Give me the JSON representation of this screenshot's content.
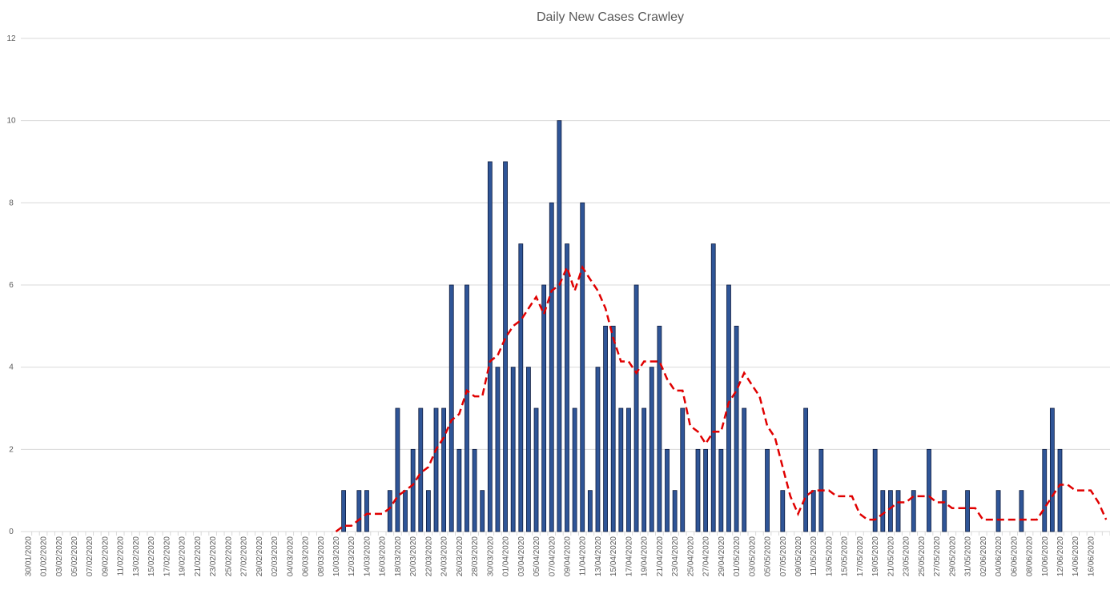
{
  "chart_data": {
    "type": "bar",
    "title": "Daily New Cases Crawley",
    "categories": [
      "30/01/2020",
      null,
      "01/02/2020",
      null,
      "03/02/2020",
      null,
      "05/02/2020",
      null,
      "07/02/2020",
      null,
      "09/02/2020",
      null,
      "11/02/2020",
      null,
      "13/02/2020",
      null,
      "15/02/2020",
      null,
      "17/02/2020",
      null,
      "19/02/2020",
      null,
      "21/02/2020",
      null,
      "23/02/2020",
      null,
      "25/02/2020",
      null,
      "27/02/2020",
      null,
      "29/02/2020",
      null,
      "02/03/2020",
      null,
      "04/03/2020",
      null,
      "06/03/2020",
      null,
      "08/03/2020",
      null,
      "10/03/2020",
      null,
      "12/03/2020",
      null,
      "14/03/2020",
      null,
      "16/03/2020",
      null,
      "18/03/2020",
      null,
      "20/03/2020",
      null,
      "22/03/2020",
      null,
      "24/03/2020",
      null,
      "26/03/2020",
      null,
      "28/03/2020",
      null,
      "30/03/2020",
      null,
      "01/04/2020",
      null,
      "03/04/2020",
      null,
      "05/04/2020",
      null,
      "07/04/2020",
      null,
      "09/04/2020",
      null,
      "11/04/2020",
      null,
      "13/04/2020",
      null,
      "15/04/2020",
      null,
      "17/04/2020",
      null,
      "19/04/2020",
      null,
      "21/04/2020",
      null,
      "23/04/2020",
      null,
      "25/04/2020",
      null,
      "27/04/2020",
      null,
      "29/04/2020",
      null,
      "01/05/2020",
      null,
      "03/05/2020",
      null,
      "05/05/2020",
      null,
      "07/05/2020",
      null,
      "09/05/2020",
      null,
      "11/05/2020",
      null,
      "13/05/2020",
      null,
      "15/05/2020",
      null,
      "17/05/2020",
      null,
      "19/05/2020",
      null,
      "21/05/2020",
      null,
      "23/05/2020",
      null,
      "25/05/2020",
      null,
      "27/05/2020",
      null,
      "29/05/2020",
      null,
      "31/05/2020",
      null,
      "02/06/2020",
      null,
      "04/06/2020",
      null,
      "06/06/2020",
      null,
      "08/06/2020",
      null,
      "10/06/2020",
      null,
      "12/06/2020",
      null,
      "14/06/2020",
      null,
      "16/06/2020",
      null,
      null
    ],
    "series": [
      {
        "type": "bar",
        "color": "#2f5597",
        "values": [
          0,
          0,
          0,
          0,
          0,
          0,
          0,
          0,
          0,
          0,
          0,
          0,
          0,
          0,
          0,
          0,
          0,
          0,
          0,
          0,
          0,
          0,
          0,
          0,
          0,
          0,
          0,
          0,
          0,
          0,
          0,
          0,
          0,
          0,
          0,
          0,
          0,
          0,
          0,
          0,
          0,
          1,
          0,
          1,
          1,
          0,
          0,
          1,
          3,
          1,
          2,
          3,
          1,
          3,
          3,
          6,
          2,
          6,
          2,
          1,
          9,
          4,
          9,
          4,
          7,
          4,
          3,
          6,
          8,
          10,
          7,
          3,
          8,
          1,
          4,
          5,
          5,
          3,
          3,
          6,
          3,
          4,
          5,
          2,
          1,
          3,
          0,
          2,
          2,
          7,
          2,
          6,
          5,
          3,
          0,
          0,
          2,
          0,
          1,
          0,
          0,
          3,
          1,
          2,
          0,
          0,
          0,
          0,
          0,
          0,
          2,
          1,
          1,
          1,
          0,
          1,
          0,
          2,
          0,
          1,
          0,
          0,
          1,
          0,
          0,
          0,
          1,
          0,
          0,
          1,
          0,
          0,
          2,
          3,
          2,
          0,
          0,
          0,
          0,
          0,
          0
        ]
      },
      {
        "type": "line",
        "color": "#e00000",
        "values": [
          null,
          null,
          null,
          null,
          null,
          null,
          null,
          null,
          null,
          null,
          null,
          null,
          null,
          null,
          null,
          null,
          null,
          null,
          null,
          null,
          null,
          null,
          null,
          null,
          null,
          null,
          null,
          null,
          null,
          null,
          null,
          null,
          null,
          null,
          null,
          null,
          null,
          null,
          null,
          null,
          0,
          0.14,
          0.14,
          0.29,
          0.43,
          0.43,
          0.43,
          0.57,
          0.86,
          1.0,
          1.14,
          1.43,
          1.57,
          2.0,
          2.29,
          2.71,
          2.86,
          3.43,
          3.29,
          3.29,
          4.14,
          4.29,
          4.71,
          5.0,
          5.14,
          5.43,
          5.71,
          5.29,
          5.86,
          6.0,
          6.43,
          5.86,
          6.43,
          6.14,
          5.86,
          5.43,
          4.71,
          4.14,
          4.14,
          3.86,
          4.14,
          4.14,
          4.14,
          3.71,
          3.43,
          3.43,
          2.57,
          2.43,
          2.14,
          2.43,
          2.43,
          3.14,
          3.43,
          3.86,
          3.57,
          3.29,
          2.57,
          2.29,
          1.57,
          0.86,
          0.43,
          0.86,
          1.0,
          1.0,
          1.0,
          0.86,
          0.86,
          0.86,
          0.43,
          0.29,
          0.29,
          0.43,
          0.57,
          0.71,
          0.71,
          0.86,
          0.86,
          0.86,
          0.71,
          0.71,
          0.57,
          0.57,
          0.57,
          0.57,
          0.29,
          0.29,
          0.29,
          0.29,
          0.29,
          0.29,
          0.29,
          0.29,
          0.57,
          0.86,
          1.14,
          1.14,
          1.0,
          1.0,
          1.0,
          0.71,
          0.29
        ]
      }
    ],
    "ylim": [
      0,
      12
    ],
    "yticks": [
      0,
      2,
      4,
      6,
      8,
      10,
      12
    ],
    "grid": true
  }
}
